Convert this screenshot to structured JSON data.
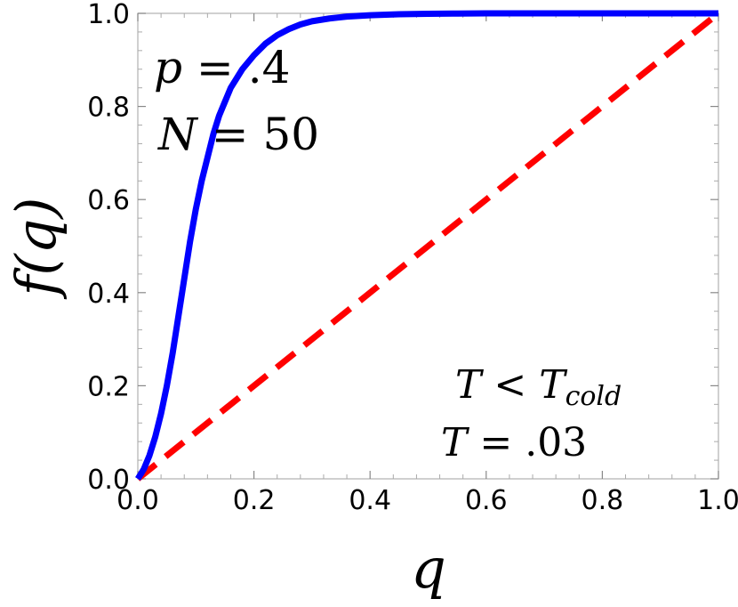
{
  "chart_data": {
    "type": "line",
    "title": "",
    "xlabel": "q",
    "ylabel": "f(q)",
    "xlim": [
      0,
      1
    ],
    "ylim": [
      0,
      1
    ],
    "x_ticks": [
      "0.0",
      "0.2",
      "0.4",
      "0.6",
      "0.8",
      "1.0"
    ],
    "y_ticks": [
      "0.0",
      "0.2",
      "0.4",
      "0.6",
      "0.8",
      "1.0"
    ],
    "grid": false,
    "series": [
      {
        "color": "#0000ff",
        "style": "solid",
        "x": [
          0,
          0.01,
          0.02,
          0.03,
          0.04,
          0.05,
          0.06,
          0.07,
          0.08,
          0.09,
          0.1,
          0.11,
          0.12,
          0.13,
          0.14,
          0.15,
          0.16,
          0.17,
          0.18,
          0.2,
          0.22,
          0.24,
          0.26,
          0.28,
          0.3,
          0.33,
          0.36,
          0.4,
          0.45,
          0.5,
          0.55,
          0.6,
          0.7,
          0.8,
          0.9,
          1.0
        ],
        "y": [
          0,
          0.02,
          0.05,
          0.09,
          0.14,
          0.2,
          0.27,
          0.35,
          0.43,
          0.51,
          0.58,
          0.64,
          0.69,
          0.74,
          0.78,
          0.81,
          0.84,
          0.86,
          0.88,
          0.91,
          0.935,
          0.953,
          0.966,
          0.976,
          0.983,
          0.989,
          0.993,
          0.996,
          0.998,
          0.999,
          0.9995,
          1.0,
          1.0,
          1.0,
          1.0,
          1.0
        ]
      },
      {
        "color": "#ff0000",
        "style": "dashed",
        "x": [
          0,
          1
        ],
        "y": [
          0,
          1
        ]
      }
    ],
    "annotations": {
      "p_line": {
        "var": "p",
        "op": " = ",
        "value": ".4"
      },
      "n_line": {
        "var": "N",
        "op": " = ",
        "value": "50"
      },
      "t_cond": {
        "var": "T",
        "op": " < ",
        "sub_base": "T",
        "sub": "cold"
      },
      "t_val": {
        "var": "T",
        "op": " = ",
        "value": ".03"
      }
    }
  }
}
